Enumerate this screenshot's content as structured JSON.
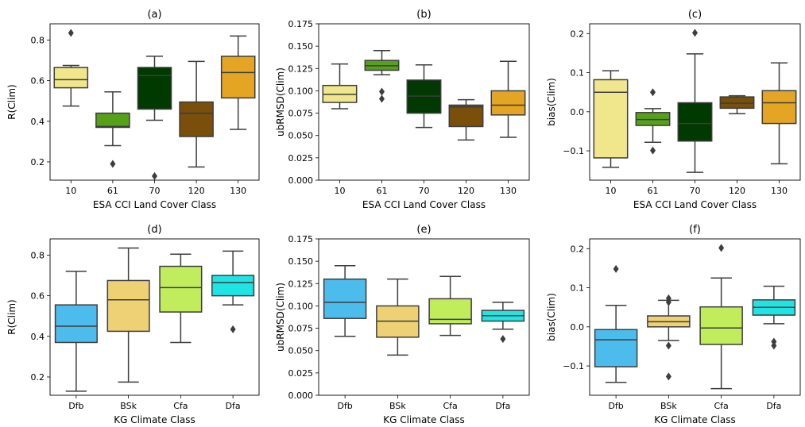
{
  "chart_data": [
    {
      "id": "a",
      "type": "box",
      "title": "(a)",
      "xlabel": "ESA CCI Land Cover Class",
      "ylabel": "R(Clim)",
      "ylim": [
        0.11,
        0.88
      ],
      "yticks": [
        0.2,
        0.4,
        0.6,
        0.8
      ],
      "ytick_labels": [
        "0.2",
        "0.4",
        "0.6",
        "0.8"
      ],
      "categories": [
        "10",
        "61",
        "70",
        "120",
        "130"
      ],
      "boxes": [
        {
          "color": "#f0e68c",
          "whislo": 0.475,
          "q1": 0.565,
          "med": 0.605,
          "q3": 0.665,
          "whishi": 0.675,
          "fliers": [
            0.835
          ]
        },
        {
          "color": "#57a01a",
          "whislo": 0.28,
          "q1": 0.37,
          "med": 0.375,
          "q3": 0.44,
          "whishi": 0.545,
          "fliers": [
            0.19
          ]
        },
        {
          "color": "#003a00",
          "whislo": 0.405,
          "q1": 0.46,
          "med": 0.625,
          "q3": 0.665,
          "whishi": 0.72,
          "fliers": [
            0.13
          ]
        },
        {
          "color": "#7a4e0b",
          "whislo": 0.175,
          "q1": 0.325,
          "med": 0.44,
          "q3": 0.495,
          "whishi": 0.695,
          "fliers": []
        },
        {
          "color": "#e4a424",
          "whislo": 0.36,
          "q1": 0.515,
          "med": 0.64,
          "q3": 0.72,
          "whishi": 0.82,
          "fliers": []
        }
      ]
    },
    {
      "id": "b",
      "type": "box",
      "title": "(b)",
      "xlabel": "ESA CCI Land Cover Class",
      "ylabel": "ubRMSD(Clim)",
      "ylim": [
        0,
        0.175
      ],
      "yticks": [
        0,
        0.025,
        0.05,
        0.075,
        0.1,
        0.125,
        0.15,
        0.175
      ],
      "ytick_labels": [
        "0.000",
        "0.025",
        "0.050",
        "0.075",
        "0.100",
        "0.125",
        "0.150",
        "0.175"
      ],
      "categories": [
        "10",
        "61",
        "70",
        "120",
        "130"
      ],
      "boxes": [
        {
          "color": "#f0e68c",
          "whislo": 0.08,
          "q1": 0.087,
          "med": 0.096,
          "q3": 0.106,
          "whishi": 0.13,
          "fliers": []
        },
        {
          "color": "#57a01a",
          "whislo": 0.118,
          "q1": 0.123,
          "med": 0.128,
          "q3": 0.134,
          "whishi": 0.145,
          "fliers": [
            0.099,
            0.091
          ]
        },
        {
          "color": "#003a00",
          "whislo": 0.059,
          "q1": 0.075,
          "med": 0.094,
          "q3": 0.112,
          "whishi": 0.129,
          "fliers": []
        },
        {
          "color": "#7a4e0b",
          "whislo": 0.045,
          "q1": 0.06,
          "med": 0.082,
          "q3": 0.084,
          "whishi": 0.09,
          "fliers": []
        },
        {
          "color": "#e4a424",
          "whislo": 0.048,
          "q1": 0.073,
          "med": 0.084,
          "q3": 0.1,
          "whishi": 0.133,
          "fliers": []
        }
      ]
    },
    {
      "id": "c",
      "type": "box",
      "title": "(c)",
      "xlabel": "ESA CCI Land Cover Class",
      "ylabel": "bias(Clim)",
      "ylim": [
        -0.175,
        0.225
      ],
      "yticks": [
        -0.1,
        0,
        0.1,
        0.2
      ],
      "ytick_labels": [
        "−0.1",
        "0.0",
        "0.1",
        "0.2"
      ],
      "categories": [
        "10",
        "61",
        "70",
        "120",
        "130"
      ],
      "boxes": [
        {
          "color": "#f0e68c",
          "whislo": -0.142,
          "q1": -0.118,
          "med": 0.05,
          "q3": 0.082,
          "whishi": 0.105,
          "fliers": []
        },
        {
          "color": "#57a01a",
          "whislo": -0.078,
          "q1": -0.035,
          "med": -0.02,
          "q3": -0.002,
          "whishi": 0.008,
          "fliers": [
            0.05,
            -0.099
          ]
        },
        {
          "color": "#003a00",
          "whislo": -0.155,
          "q1": -0.075,
          "med": -0.03,
          "q3": 0.023,
          "whishi": 0.148,
          "fliers": [
            0.202
          ]
        },
        {
          "color": "#7a4e0b",
          "whislo": -0.005,
          "q1": 0.009,
          "med": 0.022,
          "q3": 0.038,
          "whishi": 0.041,
          "fliers": []
        },
        {
          "color": "#e4a424",
          "whislo": -0.133,
          "q1": -0.03,
          "med": 0.023,
          "q3": 0.054,
          "whishi": 0.125,
          "fliers": []
        }
      ]
    },
    {
      "id": "d",
      "type": "box",
      "title": "(d)",
      "xlabel": "KG Climate Class",
      "ylabel": "R(Clim)",
      "ylim": [
        0.11,
        0.88
      ],
      "yticks": [
        0.2,
        0.4,
        0.6,
        0.8
      ],
      "ytick_labels": [
        "0.2",
        "0.4",
        "0.6",
        "0.8"
      ],
      "categories": [
        "Dfb",
        "BSk",
        "Cfa",
        "Dfa"
      ],
      "boxes": [
        {
          "color": "#4cbcec",
          "whislo": 0.13,
          "q1": 0.37,
          "med": 0.45,
          "q3": 0.555,
          "whishi": 0.72,
          "fliers": []
        },
        {
          "color": "#eed174",
          "whislo": 0.175,
          "q1": 0.425,
          "med": 0.58,
          "q3": 0.675,
          "whishi": 0.835,
          "fliers": []
        },
        {
          "color": "#c1ec5c",
          "whislo": 0.37,
          "q1": 0.52,
          "med": 0.64,
          "q3": 0.745,
          "whishi": 0.805,
          "fliers": []
        },
        {
          "color": "#1ee4e4",
          "whislo": 0.555,
          "q1": 0.6,
          "med": 0.665,
          "q3": 0.7,
          "whishi": 0.82,
          "fliers": [
            0.435
          ]
        }
      ]
    },
    {
      "id": "e",
      "type": "box",
      "title": "(e)",
      "xlabel": "KG Climate Class",
      "ylabel": "ubRMSD(Clim)",
      "ylim": [
        0,
        0.175
      ],
      "yticks": [
        0,
        0.025,
        0.05,
        0.075,
        0.1,
        0.125,
        0.15,
        0.175
      ],
      "ytick_labels": [
        "0.000",
        "0.025",
        "0.050",
        "0.075",
        "0.100",
        "0.125",
        "0.150",
        "0.175"
      ],
      "categories": [
        "Dfb",
        "BSk",
        "Cfa",
        "Dfa"
      ],
      "boxes": [
        {
          "color": "#4cbcec",
          "whislo": 0.066,
          "q1": 0.086,
          "med": 0.104,
          "q3": 0.13,
          "whishi": 0.145,
          "fliers": []
        },
        {
          "color": "#eed174",
          "whislo": 0.045,
          "q1": 0.065,
          "med": 0.083,
          "q3": 0.1,
          "whishi": 0.13,
          "fliers": []
        },
        {
          "color": "#c1ec5c",
          "whislo": 0.067,
          "q1": 0.08,
          "med": 0.085,
          "q3": 0.108,
          "whishi": 0.133,
          "fliers": []
        },
        {
          "color": "#1ee4e4",
          "whislo": 0.074,
          "q1": 0.083,
          "med": 0.089,
          "q3": 0.095,
          "whishi": 0.104,
          "fliers": [
            0.063
          ]
        }
      ]
    },
    {
      "id": "f",
      "type": "box",
      "title": "(f)",
      "xlabel": "KG Climate Class",
      "ylabel": "bias(Clim)",
      "ylim": [
        -0.175,
        0.225
      ],
      "yticks": [
        -0.1,
        0,
        0.1,
        0.2
      ],
      "ytick_labels": [
        "−0.1",
        "0.0",
        "0.1",
        "0.2"
      ],
      "categories": [
        "Dfb",
        "BSk",
        "Cfa",
        "Dfa"
      ],
      "boxes": [
        {
          "color": "#4cbcec",
          "whislo": -0.142,
          "q1": -0.102,
          "med": -0.033,
          "q3": -0.007,
          "whishi": 0.055,
          "fliers": [
            0.148
          ]
        },
        {
          "color": "#eed174",
          "whislo": -0.035,
          "q1": 0.0,
          "med": 0.013,
          "q3": 0.028,
          "whishi": 0.068,
          "fliers": [
            0.073,
            0.063,
            -0.048,
            -0.127
          ]
        },
        {
          "color": "#c1ec5c",
          "whislo": -0.158,
          "q1": -0.045,
          "med": -0.003,
          "q3": 0.051,
          "whishi": 0.125,
          "fliers": [
            0.202
          ]
        },
        {
          "color": "#1ee4e4",
          "whislo": 0.008,
          "q1": 0.03,
          "med": 0.05,
          "q3": 0.069,
          "whishi": 0.104,
          "fliers": [
            -0.038,
            -0.048
          ]
        }
      ]
    }
  ]
}
